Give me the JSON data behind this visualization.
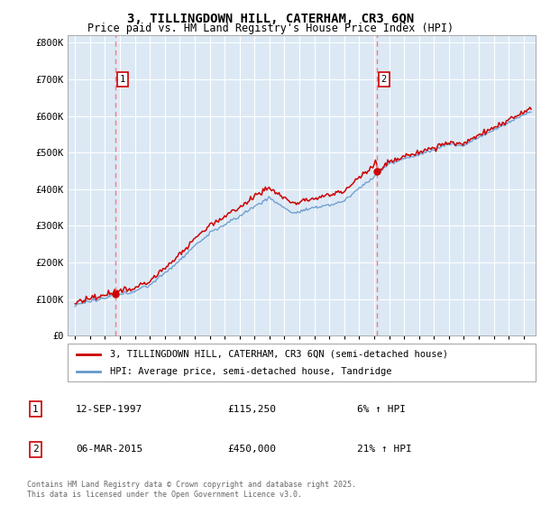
{
  "title_line1": "3, TILLINGDOWN HILL, CATERHAM, CR3 6QN",
  "title_line2": "Price paid vs. HM Land Registry's House Price Index (HPI)",
  "background_color": "#ffffff",
  "plot_bg_color": "#dce9f5",
  "grid_color": "#ffffff",
  "hpi_color": "#6699cc",
  "hpi_fill_color": "#aec8e8",
  "price_color": "#cc0000",
  "dashed_line_color": "#ff7777",
  "ylim": [
    0,
    820000
  ],
  "yticks": [
    0,
    100000,
    200000,
    300000,
    400000,
    500000,
    600000,
    700000,
    800000
  ],
  "ytick_labels": [
    "£0",
    "£100K",
    "£200K",
    "£300K",
    "£400K",
    "£500K",
    "£600K",
    "£700K",
    "£800K"
  ],
  "sale1_date": 1997.7,
  "sale1_price": 115250,
  "sale2_date": 2015.17,
  "sale2_price": 450000,
  "xmin": 1994.5,
  "xmax": 2025.8,
  "legend_line1": "3, TILLINGDOWN HILL, CATERHAM, CR3 6QN (semi-detached house)",
  "legend_line2": "HPI: Average price, semi-detached house, Tandridge",
  "table_row1": [
    "1",
    "12-SEP-1997",
    "£115,250",
    "6% ↑ HPI"
  ],
  "table_row2": [
    "2",
    "06-MAR-2015",
    "£450,000",
    "21% ↑ HPI"
  ],
  "footnote": "Contains HM Land Registry data © Crown copyright and database right 2025.\nThis data is licensed under the Open Government Licence v3.0."
}
